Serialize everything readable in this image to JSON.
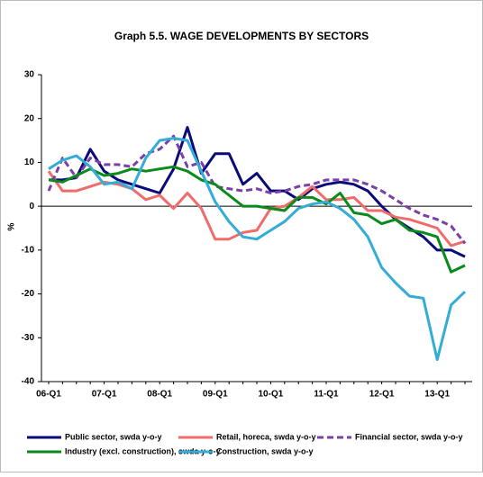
{
  "chart_data": {
    "type": "line",
    "title": "Graph 5.5. WAGE DEVELOPMENTS BY SECTORS",
    "y_label": "%",
    "categories": [
      "06-Q1",
      null,
      null,
      null,
      "07-Q1",
      null,
      null,
      null,
      "08-Q1",
      null,
      null,
      null,
      "09-Q1",
      null,
      null,
      null,
      "10-Q1",
      null,
      null,
      null,
      "11-Q1",
      null,
      null,
      null,
      "12-Q1",
      null,
      null,
      null,
      "13-Q1",
      null,
      null
    ],
    "ylim": [
      -40,
      30
    ],
    "yticks": [
      -40,
      -30,
      -20,
      -10,
      0,
      10,
      20,
      30
    ],
    "grid": false,
    "legend": "bottom",
    "series": [
      {
        "name": "Public sector, swda y-o-y",
        "color": "#0a0a7a",
        "style": "solid",
        "values": [
          6,
          6,
          6.5,
          13,
          8,
          6,
          5,
          4,
          3,
          8.5,
          18,
          7.5,
          12,
          12,
          5,
          7.5,
          3.5,
          3.5,
          1.5,
          4,
          5,
          5.5,
          5,
          3.5,
          0,
          -3,
          -5,
          -7,
          -10,
          -10,
          -11.5
        ]
      },
      {
        "name": "Retail, horeca, swda y-o-y",
        "color": "#f26b6b",
        "style": "solid",
        "values": [
          8,
          3.5,
          3.5,
          4.5,
          5.5,
          5,
          4,
          1.5,
          2.5,
          -0.5,
          3,
          -0.5,
          -7.5,
          -7.5,
          -6,
          -5.5,
          -0.5,
          0,
          2,
          4.5,
          1.5,
          1.5,
          2,
          -1,
          -1,
          -2.5,
          -3,
          -4,
          -5,
          -9,
          -8
        ]
      },
      {
        "name": "Financial sector, swda y-o-y",
        "color": "#7b3fa8",
        "style": "dashed",
        "values": [
          3.5,
          11,
          6.5,
          11,
          9.5,
          9.5,
          9,
          12,
          13,
          16,
          9,
          10,
          4.5,
          4,
          3.5,
          4,
          3,
          3.5,
          4.5,
          5,
          6,
          6,
          6,
          5,
          3.5,
          1.5,
          -0.5,
          -2,
          -3,
          -4.5,
          -8.5
        ]
      },
      {
        "name": "Industry (excl. construction), swda y-o-y",
        "color": "#0a8a1a",
        "style": "solid",
        "values": [
          6,
          5.5,
          7,
          8.5,
          7,
          7.5,
          8.5,
          8,
          8.5,
          9,
          8,
          6,
          5,
          2.5,
          0,
          0,
          -0.5,
          -1,
          2,
          2,
          0.5,
          3,
          -1.5,
          -2,
          -4,
          -3,
          -5.5,
          -6,
          -7,
          -15,
          -13.5
        ]
      },
      {
        "name": "Construction, swda y-o-y",
        "color": "#33acd6",
        "style": "solid",
        "values": [
          8.5,
          10.5,
          11.5,
          9,
          5,
          5.5,
          4,
          11,
          15,
          15.5,
          15,
          8,
          1,
          -3.5,
          -7,
          -7.5,
          -5.5,
          -3.5,
          -0.5,
          0.5,
          1,
          -0.5,
          -3,
          -7,
          -14,
          -17.5,
          -20.5,
          -21,
          -35,
          -22.5,
          -19.5
        ]
      }
    ]
  }
}
